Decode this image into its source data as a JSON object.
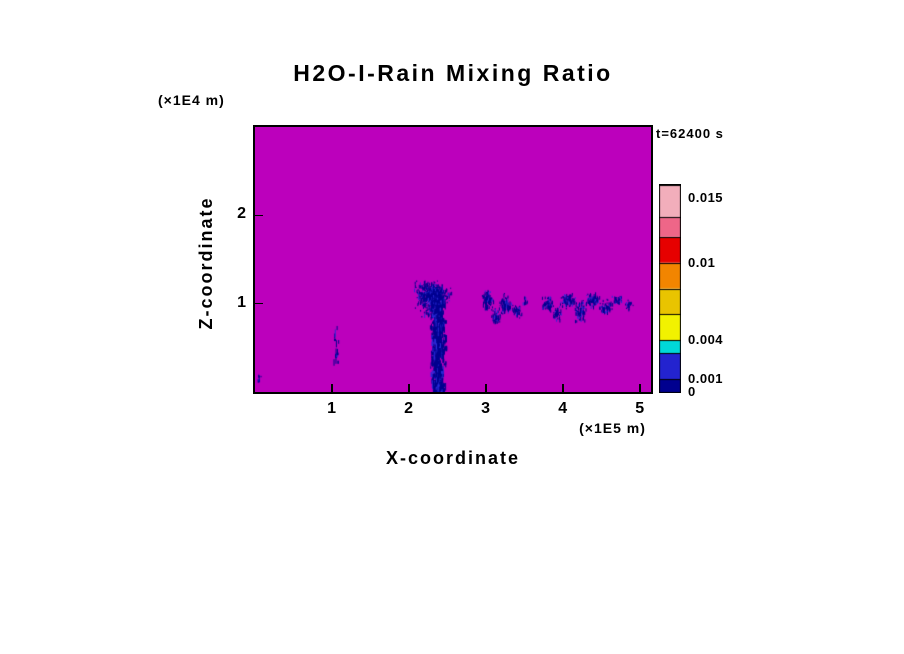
{
  "chart": {
    "title": "H2O-I-Rain Mixing Ratio",
    "time_label": "t=62400 s",
    "x_axis": {
      "label": "X-coordinate",
      "unit": "(×1E5 m)",
      "ticks": [
        1,
        2,
        3,
        4,
        5
      ]
    },
    "z_axis": {
      "label": "Z-coordinate",
      "unit": "(×1E4 m)",
      "ticks": [
        1,
        2
      ]
    },
    "colors": {
      "field_bg": "#BC00BC",
      "rain": "#00008F",
      "rain2": "#2A2AD8",
      "frame": "#000000"
    }
  },
  "chart_data": {
    "type": "heatmap",
    "title": "H2O-I-Rain Mixing Ratio",
    "time": "t=62400 s",
    "xlabel": "X-coordinate (×1E5 m)",
    "ylabel": "Z-coordinate (×1E4 m)",
    "x_range": [
      0,
      5.14
    ],
    "z_range": [
      0,
      3.0
    ],
    "background": "zero mixing ratio field shown in magenta",
    "features": [
      {
        "name": "precip-shaft",
        "type": "column",
        "cx": 2.37,
        "x_half": 0.07,
        "z_top": 1.1,
        "z_bottom": 0.0,
        "density": 0.9
      },
      {
        "name": "storm-head",
        "type": "blob",
        "cx": 2.3,
        "cz": 1.12,
        "rx": 0.29,
        "rz": 0.17,
        "density": 0.6
      },
      {
        "name": "storm-head-skirt",
        "type": "blob",
        "cx": 2.28,
        "cz": 0.95,
        "rx": 0.2,
        "rz": 0.12,
        "density": 0.2
      },
      {
        "name": "faint-wisp",
        "type": "column",
        "cx": 1.05,
        "x_half": 0.025,
        "z_top": 0.85,
        "z_bottom": 0.35,
        "density": 0.14
      },
      {
        "name": "left-edge-speck",
        "type": "blob",
        "cx": 0.05,
        "cz": 0.15,
        "rx": 0.03,
        "rz": 0.08,
        "density": 0.3
      },
      {
        "name": "patch-a1",
        "type": "blob",
        "cx": 3.02,
        "cz": 1.05,
        "rx": 0.1,
        "rz": 0.13,
        "density": 0.45
      },
      {
        "name": "patch-a2",
        "type": "blob",
        "cx": 3.12,
        "cz": 0.86,
        "rx": 0.08,
        "rz": 0.12,
        "density": 0.3
      },
      {
        "name": "patch-a3",
        "type": "blob",
        "cx": 3.25,
        "cz": 1.0,
        "rx": 0.1,
        "rz": 0.14,
        "density": 0.4
      },
      {
        "name": "patch-a4",
        "type": "blob",
        "cx": 3.4,
        "cz": 0.93,
        "rx": 0.08,
        "rz": 0.1,
        "density": 0.3
      },
      {
        "name": "patch-a5",
        "type": "blob",
        "cx": 3.5,
        "cz": 1.05,
        "rx": 0.05,
        "rz": 0.08,
        "density": 0.2
      },
      {
        "name": "patch-b1",
        "type": "blob",
        "cx": 3.8,
        "cz": 1.0,
        "rx": 0.1,
        "rz": 0.12,
        "density": 0.35
      },
      {
        "name": "patch-b2",
        "type": "blob",
        "cx": 3.92,
        "cz": 0.9,
        "rx": 0.08,
        "rz": 0.1,
        "density": 0.3
      },
      {
        "name": "patch-b3",
        "type": "blob",
        "cx": 4.05,
        "cz": 1.05,
        "rx": 0.12,
        "rz": 0.1,
        "density": 0.4
      },
      {
        "name": "patch-b4",
        "type": "blob",
        "cx": 4.22,
        "cz": 0.93,
        "rx": 0.1,
        "rz": 0.13,
        "density": 0.35
      },
      {
        "name": "patch-b5",
        "type": "blob",
        "cx": 4.38,
        "cz": 1.05,
        "rx": 0.12,
        "rz": 0.1,
        "density": 0.4
      },
      {
        "name": "patch-b6",
        "type": "blob",
        "cx": 4.55,
        "cz": 0.97,
        "rx": 0.1,
        "rz": 0.1,
        "density": 0.35
      },
      {
        "name": "patch-b7",
        "type": "blob",
        "cx": 4.7,
        "cz": 1.05,
        "rx": 0.1,
        "rz": 0.08,
        "density": 0.3
      },
      {
        "name": "patch-b8",
        "type": "blob",
        "cx": 4.85,
        "cz": 1.0,
        "rx": 0.06,
        "rz": 0.08,
        "density": 0.25
      }
    ],
    "colorbar": {
      "vmax": 0.016,
      "ticks": [
        {
          "value": 0.015,
          "label": "0.015"
        },
        {
          "value": 0.01,
          "label": "0.01"
        },
        {
          "value": 0.004,
          "label": "0.004"
        },
        {
          "value": 0.001,
          "label": "0.001"
        },
        {
          "value": 0,
          "label": "0"
        }
      ],
      "segments": [
        {
          "from": 0,
          "to": 0.001,
          "color": "#00008F"
        },
        {
          "from": 0.001,
          "to": 0.003,
          "color": "#2323CF"
        },
        {
          "from": 0.003,
          "to": 0.004,
          "color": "#00D8D8"
        },
        {
          "from": 0.004,
          "to": 0.006,
          "color": "#F2F200"
        },
        {
          "from": 0.006,
          "to": 0.008,
          "color": "#E9C400"
        },
        {
          "from": 0.008,
          "to": 0.01,
          "color": "#F28500"
        },
        {
          "from": 0.01,
          "to": 0.012,
          "color": "#E60000"
        },
        {
          "from": 0.012,
          "to": 0.0135,
          "color": "#EE6688"
        },
        {
          "from": 0.0135,
          "to": 0.016,
          "color": "#F2AEBB"
        }
      ]
    }
  }
}
